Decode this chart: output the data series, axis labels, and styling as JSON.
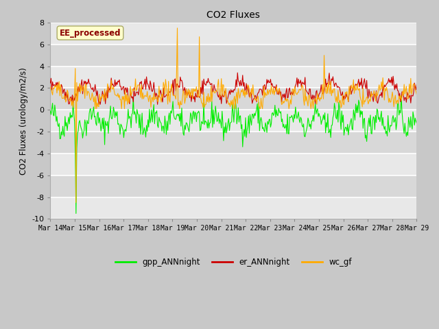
{
  "title": "CO2 Fluxes",
  "ylabel": "CO2 Fluxes (urology/m2/s)",
  "ylim": [
    -10,
    8
  ],
  "yticks": [
    -10,
    -8,
    -6,
    -4,
    -2,
    0,
    2,
    4,
    6,
    8
  ],
  "xtick_labels": [
    "Mar 14",
    "Mar 15",
    "Mar 16",
    "Mar 17",
    "Mar 18",
    "Mar 19",
    "Mar 20",
    "Mar 21",
    "Mar 22",
    "Mar 23",
    "Mar 24",
    "Mar 25",
    "Mar 26",
    "Mar 27",
    "Mar 28",
    "Mar 29"
  ],
  "colors": {
    "gpp": "#00ee00",
    "er": "#cc0000",
    "wc": "#ffaa00"
  },
  "legend_labels": [
    "gpp_ANNnight",
    "er_ANNnight",
    "wc_gf"
  ],
  "annotation_text": "EE_processed",
  "annotation_color": "#8b0000",
  "annotation_bg": "#ffffcc",
  "fig_bg": "#c8c8c8",
  "plot_bg_dark": "#d8d8d8",
  "plot_bg_light": "#e8e8e8",
  "n_points": 500,
  "seed": 42
}
